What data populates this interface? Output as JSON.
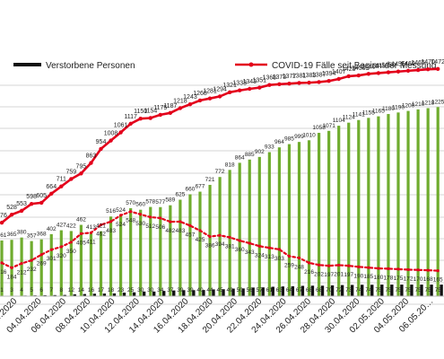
{
  "chart_data": {
    "type": "bar",
    "legend": {
      "placement": "top",
      "deaths_label": "Verstorbene Personen",
      "cases_label": "COVID-19 Fälle seit Beginn der Messung"
    },
    "grid": true,
    "ylim": [
      0,
      1600
    ],
    "x": [
      "23.03",
      "24.03",
      "25.03",
      "26.03",
      "27.03",
      "28.03",
      "29.03",
      "30.03",
      "31.03",
      "01.04",
      "02.04",
      "03.04",
      "04.04",
      "05.04",
      "06.04",
      "07.04",
      "08.04",
      "09.04",
      "10.04",
      "11.04",
      "12.04",
      "13.04",
      "14.04",
      "15.04",
      "16.04",
      "17.04",
      "18.04",
      "19.04",
      "20.04",
      "21.04",
      "22.04",
      "23.04",
      "24.04",
      "25.04",
      "26.04",
      "27.04",
      "28.04",
      "29.04",
      "30.04",
      "01.05",
      "02.05",
      "03.05",
      "04.05",
      "05.05",
      "06.05"
    ],
    "x_tick_labels": [
      "…03.2020",
      "02.04.2020",
      "04.04.2020",
      "06.04.2020",
      "08.04.2020",
      "10.04.2020",
      "12.04.2020",
      "14.04.2020",
      "16.04.2020",
      "18.04.2020",
      "20.04.2020",
      "22.04.2020",
      "24.04.2020",
      "26.04.2020",
      "28.04.2020",
      "30.04.2020",
      "02.05.2020",
      "04.05.2020",
      "06.05.20…"
    ],
    "series": [
      {
        "name": "COVID-19 Fälle seit Beginn der Messung",
        "kind": "line",
        "color": "#e3001b",
        "values": [
          476,
          528,
          553,
          598,
          605,
          664,
          711,
          759,
          795,
          863,
          954,
          1008,
          1061,
          1117,
          1150,
          1154,
          1175,
          1187,
          1218,
          1243,
          1268,
          1281,
          1294,
          1321,
          1333,
          1343,
          1351,
          1368,
          1373,
          1377,
          1381,
          1383,
          1387,
          1394,
          1407,
          1425,
          1430,
          1440,
          1445,
          1450,
          1455,
          1460,
          1465,
          1470,
          1472
        ]
      },
      {
        "name": "",
        "kind": "bar",
        "color": "#6fac2e",
        "values": [
          361,
          365,
          380,
          357,
          368,
          402,
          427,
          422,
          462,
          413,
          421,
          516,
          524,
          570,
          560,
          578,
          577,
          589,
          625,
          660,
          677,
          721,
          772,
          818,
          864,
          885,
          902,
          933,
          964,
          985,
          999,
          1010,
          1058,
          1071,
          1104,
          1124,
          1141,
          1155,
          1165,
          1180,
          1190,
          1200,
          1210,
          1218,
          1225
        ]
      },
      {
        "name": "",
        "kind": "dotted-line",
        "color": "#e3001b",
        "values": [
          216,
          184,
          212,
          232,
          269,
          301,
          320,
          350,
          405,
          411,
          462,
          483,
          524,
          548,
          530,
          512,
          506,
          482,
          483,
          457,
          425,
          386,
          394,
          381,
          360,
          343,
          324,
          313,
          303,
          259,
          248,
          216,
          202,
          197,
          201,
          197,
          190,
          185,
          180,
          178,
          175,
          172,
          170,
          168,
          165
        ]
      },
      {
        "name": "Verstorbene Personen",
        "kind": "bar",
        "color": "#111111",
        "values": [
          1,
          3,
          4,
          5,
          6,
          7,
          8,
          12,
          14,
          16,
          17,
          18,
          23,
          25,
          30,
          30,
          34,
          37,
          39,
          39,
          40,
          44,
          45,
          49,
          50,
          56,
          57,
          61,
          63,
          64,
          67,
          68,
          68,
          70,
          72,
          73,
          74,
          74,
          75,
          75,
          75,
          75,
          75,
          75,
          75
        ]
      }
    ]
  }
}
